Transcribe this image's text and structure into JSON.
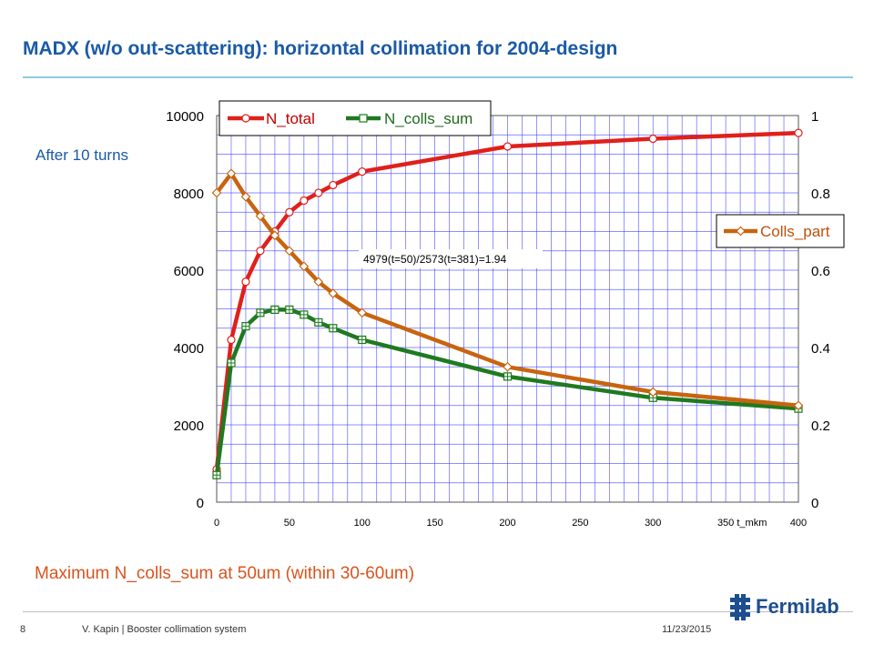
{
  "slide": {
    "title": "MADX (w/o out-scattering): horizontal collimation for 2004-design",
    "after_note": "After 10 turns",
    "max_note": "Maximum N_colls_sum at 50um (within 30-60um)"
  },
  "footer": {
    "page": "8",
    "author": "V. Kapin | Booster collimation system",
    "date": "11/23/2015",
    "logo_text": "Fermilab"
  },
  "colors": {
    "title": "#1a5aa6",
    "n_total": "#e0201b",
    "n_colls_sum": "#1f7a1f",
    "colls_part": "#c8640f",
    "grid": "#3333ff"
  },
  "chart_data": {
    "type": "line",
    "xlabel": "t_mkm",
    "x_ticks": [
      "0",
      "50",
      "100",
      "150",
      "200",
      "250",
      "300",
      "350",
      "400"
    ],
    "xlim": [
      0,
      400
    ],
    "ylim_left": [
      0,
      10000
    ],
    "y_ticks_left": [
      "0",
      "2000",
      "4000",
      "6000",
      "8000",
      "10000"
    ],
    "ylim_right": [
      0,
      1
    ],
    "y_ticks_right": [
      "0",
      "0.2",
      "0.4",
      "0.6",
      "0.8",
      "1"
    ],
    "annotation": "4979(t=50)/2573(t=381)=1.94",
    "series": [
      {
        "name": "N_total",
        "axis": "left",
        "color": "#e0201b",
        "marker": "circle",
        "x": [
          0,
          10,
          20,
          30,
          40,
          50,
          60,
          70,
          80,
          100,
          200,
          300,
          400
        ],
        "y": [
          850,
          4200,
          5700,
          6500,
          7000,
          7500,
          7800,
          8000,
          8200,
          8550,
          9200,
          9400,
          9550
        ]
      },
      {
        "name": "N_colls_sum",
        "axis": "left",
        "color": "#1f7a1f",
        "marker": "square",
        "x": [
          0,
          10,
          20,
          30,
          40,
          50,
          60,
          70,
          80,
          100,
          200,
          300,
          400
        ],
        "y": [
          700,
          3600,
          4550,
          4900,
          4979,
          4979,
          4850,
          4650,
          4500,
          4200,
          3250,
          2700,
          2420
        ]
      },
      {
        "name": "Colls_part",
        "axis": "right",
        "color": "#c8640f",
        "marker": "diamond",
        "x": [
          0,
          10,
          20,
          30,
          40,
          50,
          60,
          70,
          80,
          100,
          200,
          300,
          400
        ],
        "y": [
          0.8,
          0.85,
          0.79,
          0.74,
          0.69,
          0.65,
          0.61,
          0.57,
          0.54,
          0.49,
          0.35,
          0.285,
          0.25
        ]
      }
    ]
  }
}
